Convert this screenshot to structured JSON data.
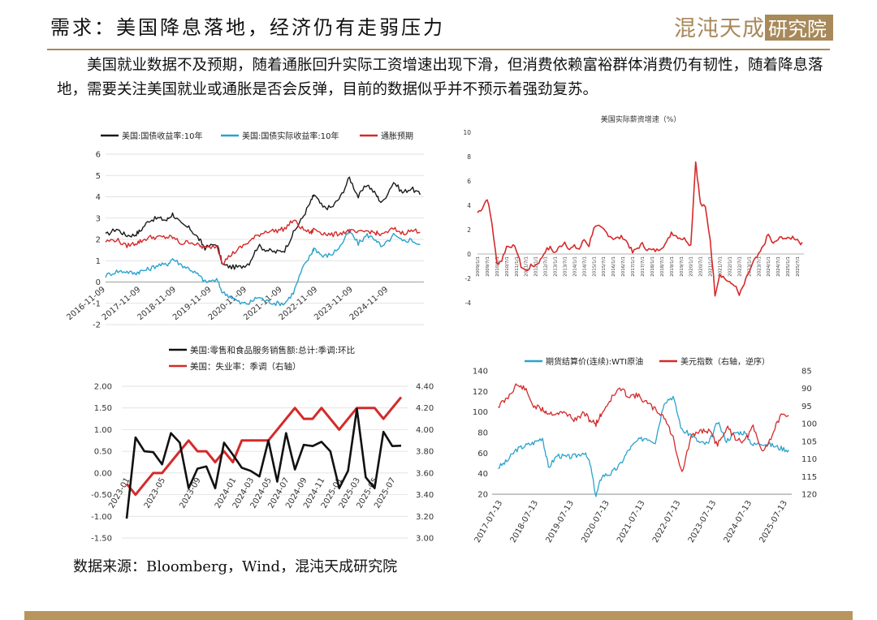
{
  "page": {
    "title": "需求：美国降息落地，经济仍有走弱压力",
    "body": "美国就业数据不及预期，随着通胀回升实际工资增速出现下滑，但消费依赖富裕群体消费仍有韧性，随着降息落地，需要关注美国就业或通胀是否会反弹，目前的数据似乎并不预示着强劲复苏。",
    "source": "数据来源：Bloomberg，Wind，混沌天成研究院",
    "logo_text": "混沌天成研究院",
    "accent_color": "#a8895a"
  },
  "chart_data": [
    {
      "type": "line",
      "xlim": [
        "2016-11-09",
        "2025-11-09"
      ],
      "x_ticks": [
        "2016-11-09",
        "2017-11-09",
        "2018-11-09",
        "2019-11-09",
        "2020-11-09",
        "2021-11-09",
        "2022-11-09",
        "2023-11-09",
        "2024-11-09"
      ],
      "ylim": [
        -2,
        6
      ],
      "y_ticks": [
        "-2",
        "-1",
        "0",
        "1",
        "2",
        "3",
        "4",
        "5",
        "6"
      ],
      "legend_position": "top",
      "series": [
        {
          "name": "美国:国债收益率:10年",
          "color": "#1a1a1a",
          "x": [
            "2016-11-09",
            "2017-03",
            "2017-06",
            "2017-09",
            "2017-11",
            "2018-02",
            "2018-05",
            "2018-08",
            "2018-10",
            "2019-01",
            "2019-04",
            "2019-07",
            "2019-09",
            "2020-01",
            "2020-03",
            "2020-06",
            "2020-09",
            "2020-12",
            "2021-03",
            "2021-06",
            "2021-09",
            "2021-12",
            "2022-03",
            "2022-06",
            "2022-09",
            "2022-10",
            "2023-01",
            "2023-04",
            "2023-07",
            "2023-10",
            "2024-01",
            "2024-04",
            "2024-07",
            "2024-09",
            "2025-01",
            "2025-04",
            "2025-07",
            "2025-10"
          ],
          "values": [
            2.2,
            2.5,
            2.2,
            2.2,
            2.4,
            2.9,
            3.0,
            2.9,
            3.2,
            2.7,
            2.5,
            2.0,
            1.6,
            1.8,
            0.8,
            0.7,
            0.7,
            0.9,
            1.7,
            1.5,
            1.4,
            1.5,
            2.3,
            3.0,
            3.8,
            4.1,
            3.5,
            3.5,
            4.0,
            4.9,
            4.0,
            4.6,
            4.1,
            3.7,
            4.7,
            4.2,
            4.4,
            4.1
          ]
        },
        {
          "name": "美国:国债实际收益率:10年",
          "color": "#2ba3cc",
          "x": [
            "2016-11-09",
            "2017-03",
            "2017-06",
            "2017-09",
            "2017-11",
            "2018-02",
            "2018-05",
            "2018-08",
            "2018-10",
            "2019-01",
            "2019-04",
            "2019-07",
            "2019-09",
            "2020-01",
            "2020-03",
            "2020-06",
            "2020-09",
            "2020-12",
            "2021-03",
            "2021-06",
            "2021-09",
            "2021-12",
            "2022-03",
            "2022-06",
            "2022-09",
            "2022-10",
            "2023-01",
            "2023-04",
            "2023-07",
            "2023-10",
            "2024-01",
            "2024-04",
            "2024-07",
            "2024-09",
            "2025-01",
            "2025-04",
            "2025-07",
            "2025-10"
          ],
          "values": [
            0.3,
            0.5,
            0.5,
            0.4,
            0.5,
            0.6,
            0.8,
            0.8,
            1.1,
            0.8,
            0.6,
            0.3,
            0.0,
            0.1,
            -0.5,
            -0.7,
            -1.0,
            -1.0,
            -0.7,
            -0.9,
            -1.0,
            -1.0,
            -0.5,
            0.6,
            1.3,
            1.6,
            1.2,
            1.3,
            1.7,
            2.4,
            1.8,
            2.2,
            2.0,
            1.6,
            2.2,
            1.9,
            2.0,
            1.7
          ]
        },
        {
          "name": "通胀预期",
          "color": "#d42a2a",
          "x": [
            "2016-11-09",
            "2017-03",
            "2017-06",
            "2017-09",
            "2017-11",
            "2018-02",
            "2018-05",
            "2018-08",
            "2018-10",
            "2019-01",
            "2019-04",
            "2019-07",
            "2019-09",
            "2020-01",
            "2020-03",
            "2020-06",
            "2020-09",
            "2020-12",
            "2021-03",
            "2021-06",
            "2021-09",
            "2021-12",
            "2022-03",
            "2022-06",
            "2022-09",
            "2022-10",
            "2023-01",
            "2023-04",
            "2023-07",
            "2023-10",
            "2024-01",
            "2024-04",
            "2024-07",
            "2024-09",
            "2025-01",
            "2025-04",
            "2025-07",
            "2025-10"
          ],
          "values": [
            1.9,
            2.0,
            1.7,
            1.8,
            1.9,
            2.1,
            2.1,
            2.1,
            2.1,
            1.8,
            1.9,
            1.7,
            1.6,
            1.7,
            0.9,
            1.3,
            1.6,
            1.9,
            2.2,
            2.4,
            2.4,
            2.5,
            2.9,
            2.5,
            2.3,
            2.5,
            2.3,
            2.2,
            2.3,
            2.4,
            2.3,
            2.4,
            2.3,
            2.2,
            2.5,
            2.3,
            2.4,
            2.4
          ]
        }
      ]
    },
    {
      "type": "line",
      "title": "美国实际薪资增速（%）",
      "ylim": [
        -4,
        10
      ],
      "y_ticks": [
        "-4",
        "-2",
        "0",
        "2",
        "4",
        "6",
        "8",
        "10"
      ],
      "x_ticks": [
        "2009/1/1",
        "2009/7/1",
        "2010/1/1",
        "2010/7/1",
        "2011/1/1",
        "2011/7/1",
        "2012/1/1",
        "2012/7/1",
        "2013/1/1",
        "2013/7/1",
        "2014/1/1",
        "2014/7/1",
        "2015/1/1",
        "2015/7/1",
        "2016/1/1",
        "2016/7/1",
        "2017/1/1",
        "2017/7/1",
        "2018/1/1",
        "2018/7/1",
        "2019/1/1",
        "2019/7/1",
        "2020/1/1",
        "2020/7/1",
        "2021/1/1",
        "2021/7/1",
        "2022/1/1",
        "2022/7/1",
        "2023/1/1",
        "2023/7/1",
        "2024/1/1",
        "2024/7/1",
        "2025/1/1",
        "2025/7/1"
      ],
      "series": [
        {
          "name": "",
          "color": "#d42a2a",
          "x": [
            "2009-01",
            "2009-04",
            "2009-07",
            "2009-10",
            "2010-01",
            "2010-04",
            "2010-07",
            "2010-10",
            "2011-01",
            "2011-04",
            "2011-07",
            "2011-10",
            "2012-01",
            "2012-04",
            "2012-07",
            "2012-10",
            "2013-01",
            "2013-04",
            "2013-07",
            "2013-10",
            "2014-01",
            "2014-04",
            "2014-07",
            "2014-10",
            "2015-01",
            "2015-04",
            "2015-07",
            "2015-10",
            "2016-01",
            "2016-04",
            "2016-07",
            "2016-10",
            "2017-01",
            "2017-04",
            "2017-07",
            "2017-10",
            "2018-01",
            "2018-04",
            "2018-07",
            "2018-10",
            "2019-01",
            "2019-04",
            "2019-07",
            "2019-10",
            "2020-01",
            "2020-04",
            "2020-05",
            "2020-07",
            "2020-10",
            "2021-01",
            "2021-04",
            "2021-07",
            "2021-10",
            "2022-01",
            "2022-04",
            "2022-07",
            "2022-10",
            "2023-01",
            "2023-04",
            "2023-07",
            "2023-10",
            "2024-01",
            "2024-04",
            "2024-07",
            "2024-10",
            "2025-01",
            "2025-04",
            "2025-07",
            "2025-10"
          ],
          "values": [
            3.4,
            3.8,
            4.6,
            2.5,
            -0.8,
            -0.5,
            0.6,
            0.7,
            0.4,
            -1.0,
            -1.4,
            -1.0,
            -0.9,
            -0.5,
            0.3,
            0.5,
            0.1,
            0.6,
            1.0,
            0.4,
            0.6,
            0.4,
            1.2,
            0.7,
            2.2,
            2.2,
            2.0,
            1.6,
            1.3,
            1.3,
            1.4,
            0.9,
            0.1,
            0.5,
            0.8,
            0.4,
            0.3,
            0.3,
            0.6,
            0.9,
            1.8,
            1.5,
            1.3,
            1.2,
            0.7,
            7.7,
            6.4,
            4.1,
            3.8,
            1.2,
            -3.3,
            -1.6,
            -2.0,
            -2.4,
            -2.5,
            -3.4,
            -2.5,
            -1.5,
            -0.6,
            -0.1,
            0.7,
            1.6,
            0.8,
            1.2,
            1.4,
            1.2,
            1.4,
            1.2,
            0.8
          ]
        }
      ]
    },
    {
      "type": "line",
      "ylim": [
        -1.5,
        2.0
      ],
      "y_ticks": [
        "-1.50",
        "-1.00",
        "-0.50",
        "0.00",
        "0.50",
        "1.00",
        "1.50",
        "2.00"
      ],
      "ylim_right": [
        3.0,
        4.4
      ],
      "y_ticks_right": [
        "3.00",
        "3.20",
        "3.40",
        "3.60",
        "3.80",
        "4.00",
        "4.20",
        "4.40"
      ],
      "x_ticks": [
        "2023-01",
        "2023-05",
        "2023-09",
        "2024-01",
        "2024-03",
        "2024-05",
        "2024-07",
        "2024-09",
        "2024-11",
        "2025-01",
        "2025-03",
        "2025-05",
        "2025-07"
      ],
      "legend_position": "top",
      "x": [
        "2023-01",
        "2023-02",
        "2023-03",
        "2023-04",
        "2023-05",
        "2023-06",
        "2023-07",
        "2023-08",
        "2023-09",
        "2023-10",
        "2023-11",
        "2023-12",
        "2024-01",
        "2024-02",
        "2024-03",
        "2024-04",
        "2024-05",
        "2024-06",
        "2024-07",
        "2024-08",
        "2024-09",
        "2024-10",
        "2024-11",
        "2024-12",
        "2025-01",
        "2025-02",
        "2025-03",
        "2025-04",
        "2025-05",
        "2025-06",
        "2025-07",
        "2025-08"
      ],
      "series": [
        {
          "name": "美国:零售和食品服务销售额:总计:季调:环比",
          "color": "#111111",
          "axis": "left",
          "values": [
            -1.05,
            0.82,
            0.5,
            0.48,
            0.2,
            0.92,
            0.7,
            -0.35,
            0.1,
            0.15,
            -0.35,
            0.7,
            0.42,
            0.12,
            0.05,
            -0.08,
            0.75,
            -0.2,
            0.92,
            0.08,
            0.65,
            0.62,
            0.72,
            0.5,
            -0.35,
            0.05,
            1.48,
            -0.1,
            -0.35,
            0.95,
            0.62,
            0.63
          ]
        },
        {
          "name": "美国：失业率：季调（右轴）",
          "color": "#d42a2a",
          "axis": "right",
          "values": [
            3.5,
            3.4,
            3.5,
            3.6,
            3.6,
            3.7,
            3.8,
            3.9,
            3.8,
            3.8,
            3.7,
            3.8,
            3.7,
            3.9,
            3.9,
            3.9,
            3.9,
            4.0,
            4.1,
            4.2,
            4.1,
            4.1,
            4.2,
            4.1,
            4.0,
            4.1,
            4.2,
            4.2,
            4.2,
            4.1,
            4.2,
            4.3
          ]
        }
      ]
    },
    {
      "type": "line",
      "ylim": [
        20,
        140
      ],
      "y_ticks": [
        "20",
        "40",
        "60",
        "80",
        "100",
        "120",
        "140"
      ],
      "ylim_right": [
        85,
        120
      ],
      "y_ticks_right": [
        "85",
        "90",
        "95",
        "100",
        "105",
        "110",
        "115",
        "120"
      ],
      "right_axis_inverted": true,
      "x_ticks": [
        "2017-07-13",
        "2018-07-13",
        "2019-07-13",
        "2020-07-13",
        "2021-07-13",
        "2022-07-13",
        "2023-07-13",
        "2024-07-13",
        "2025-07-13"
      ],
      "legend_position": "top",
      "series": [
        {
          "name": "期货结算价(连续):WTI原油",
          "color": "#2ba3cc",
          "axis": "left",
          "x": [
            "2017-07",
            "2017-10",
            "2018-01",
            "2018-04",
            "2018-07",
            "2018-10",
            "2018-12",
            "2019-03",
            "2019-06",
            "2019-09",
            "2019-12",
            "2020-02",
            "2020-04",
            "2020-06",
            "2020-09",
            "2020-12",
            "2021-03",
            "2021-06",
            "2021-09",
            "2021-12",
            "2022-03",
            "2022-06",
            "2022-09",
            "2022-12",
            "2023-03",
            "2023-06",
            "2023-09",
            "2023-12",
            "2024-03",
            "2024-06",
            "2024-09",
            "2024-12",
            "2025-03",
            "2025-06",
            "2025-09"
          ],
          "values": [
            46,
            52,
            63,
            67,
            70,
            75,
            46,
            58,
            56,
            57,
            61,
            50,
            18,
            38,
            40,
            48,
            63,
            72,
            75,
            71,
            110,
            115,
            82,
            78,
            70,
            69,
            90,
            72,
            80,
            80,
            68,
            70,
            68,
            65,
            63
          ]
        },
        {
          "name": "美元指数（右轴，逆序）",
          "color": "#d42a2a",
          "axis": "right",
          "x": [
            "2017-07",
            "2017-10",
            "2018-01",
            "2018-04",
            "2018-07",
            "2018-10",
            "2018-12",
            "2019-03",
            "2019-06",
            "2019-09",
            "2019-12",
            "2020-02",
            "2020-04",
            "2020-06",
            "2020-09",
            "2020-12",
            "2021-03",
            "2021-06",
            "2021-09",
            "2021-12",
            "2022-03",
            "2022-06",
            "2022-09",
            "2022-12",
            "2023-03",
            "2023-06",
            "2023-09",
            "2023-12",
            "2024-03",
            "2024-06",
            "2024-09",
            "2024-12",
            "2025-03",
            "2025-06",
            "2025-09"
          ],
          "values": [
            95,
            93,
            89,
            90,
            95,
            96,
            97,
            97,
            97,
            99,
            97,
            99,
            100,
            97,
            93,
            90,
            92,
            92,
            94,
            96,
            98,
            104,
            114,
            104,
            102,
            102,
            106,
            101,
            104,
            105,
            101,
            108,
            104,
            98,
            98
          ]
        }
      ]
    }
  ]
}
